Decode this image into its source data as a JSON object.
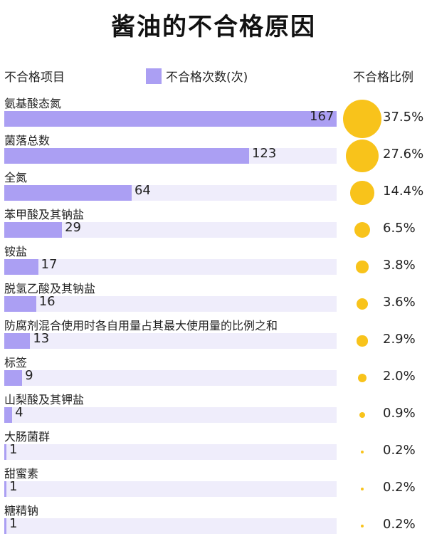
{
  "title": "酱油的不合格原因",
  "header": {
    "item_label": "不合格项目",
    "legend_label": "不合格次数(次)",
    "ratio_label": "不合格比例"
  },
  "colors": {
    "bar": "#ab9ff3",
    "track": "#efedfb",
    "bubble": "#f8c31b",
    "legend": "#ab9ff3"
  },
  "chart_data": {
    "type": "bar",
    "orientation": "horizontal",
    "title": "酱油的不合格原因",
    "categories": [
      "氨基酸态氮",
      "菌落总数",
      "全氮",
      "苯甲酸及其钠盐",
      "铵盐",
      "脱氢乙酸及其钠盐",
      "防腐剂混合使用时各自用量占其最大使用量的比例之和",
      "标签",
      "山梨酸及其钾盐",
      "大肠菌群",
      "甜蜜素",
      "糖精钠"
    ],
    "series": [
      {
        "name": "不合格次数(次)",
        "values": [
          167,
          123,
          64,
          29,
          17,
          16,
          13,
          9,
          4,
          1,
          1,
          1
        ]
      }
    ],
    "ratio_labels": [
      "37.5%",
      "27.6%",
      "14.4%",
      "6.5%",
      "3.8%",
      "3.6%",
      "2.9%",
      "2.0%",
      "0.9%",
      "0.2%",
      "0.2%",
      "0.2%"
    ],
    "ratios": [
      37.5,
      27.6,
      14.4,
      6.5,
      3.8,
      3.6,
      2.9,
      2.0,
      0.9,
      0.2,
      0.2,
      0.2
    ],
    "xlim": [
      0,
      167
    ]
  }
}
